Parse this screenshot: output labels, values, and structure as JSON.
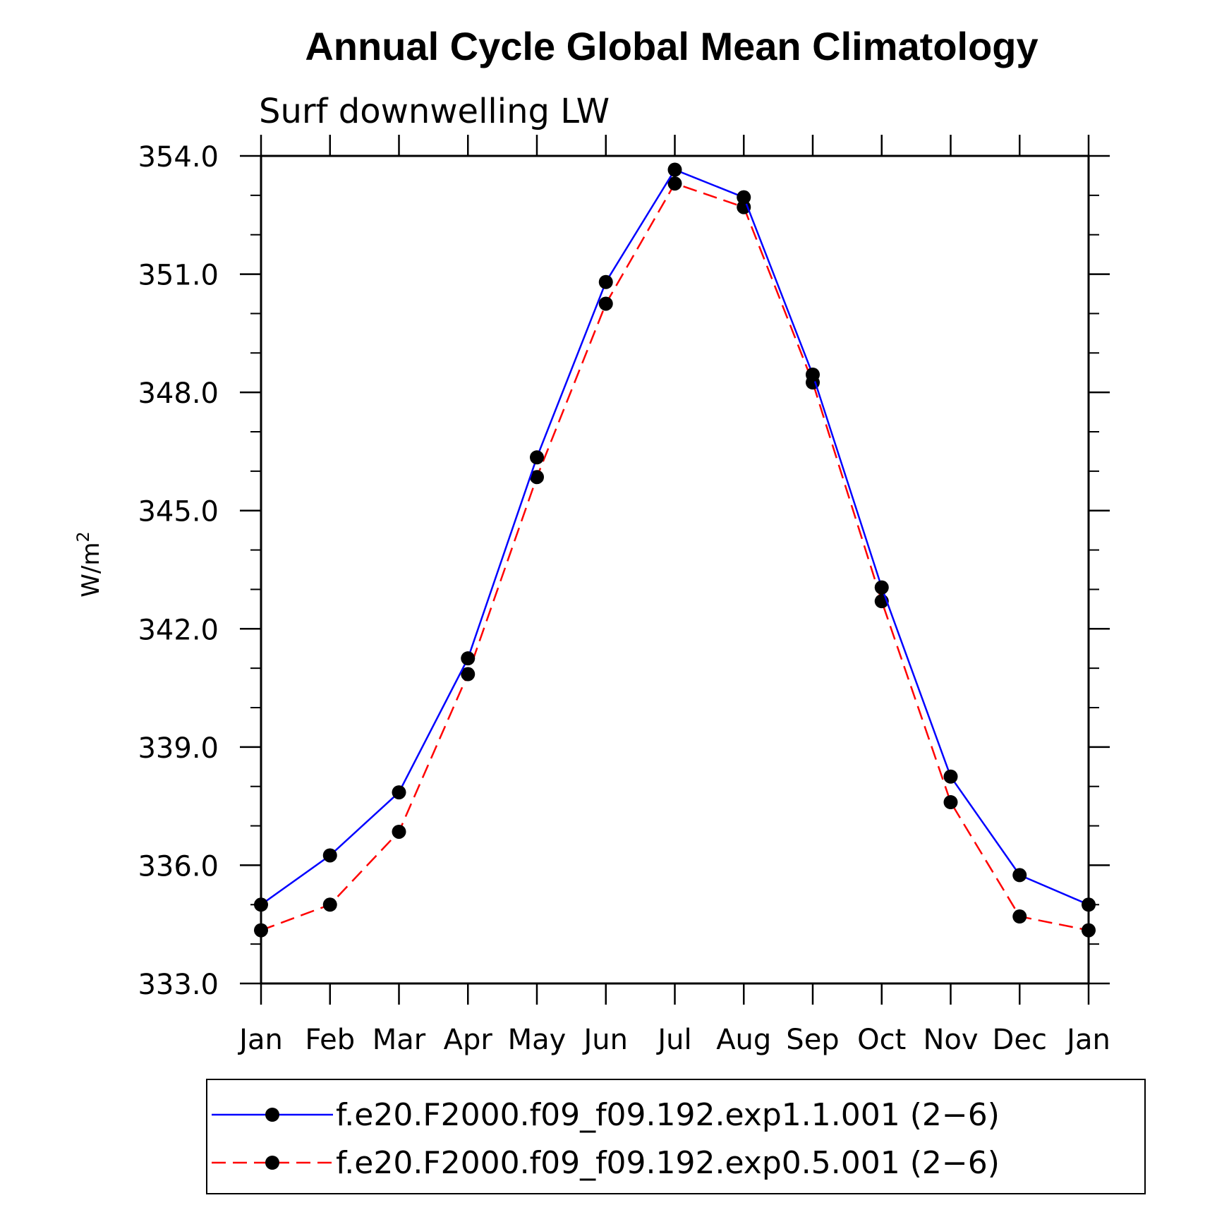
{
  "chart_data": {
    "type": "line",
    "title": "Annual Cycle Global Mean Climatology",
    "subtitle": "Surf downwelling LW",
    "ylabel": "W/m",
    "ylabel_superscript": "2",
    "categories": [
      "Jan",
      "Feb",
      "Mar",
      "Apr",
      "May",
      "Jun",
      "Jul",
      "Aug",
      "Sep",
      "Oct",
      "Nov",
      "Dec",
      "Jan"
    ],
    "ylim": [
      333.0,
      354.0
    ],
    "yticks": [
      "354.0",
      "351.0",
      "348.0",
      "345.0",
      "342.0",
      "339.0",
      "336.0",
      "333.0"
    ],
    "ytick_values": [
      354,
      351,
      348,
      345,
      342,
      339,
      336,
      333
    ],
    "series": [
      {
        "name": "f.e20.F2000.f09_f09.192.exp1.1.001 (2−6)",
        "color": "#0000ff",
        "dash": "solid",
        "values": [
          335.0,
          336.25,
          337.85,
          341.25,
          346.35,
          350.8,
          353.65,
          352.95,
          348.45,
          343.05,
          338.25,
          335.75,
          335.0
        ]
      },
      {
        "name": "f.e20.F2000.f09_f09.192.exp0.5.001 (2−6)",
        "color": "#ff0000",
        "dash": "dashed",
        "values": [
          334.35,
          335.0,
          336.85,
          340.85,
          345.85,
          350.25,
          353.3,
          352.7,
          348.25,
          342.7,
          337.6,
          334.7,
          334.35
        ]
      }
    ],
    "marker_color": "#000000",
    "grid": false,
    "legend_position": "bottom"
  }
}
